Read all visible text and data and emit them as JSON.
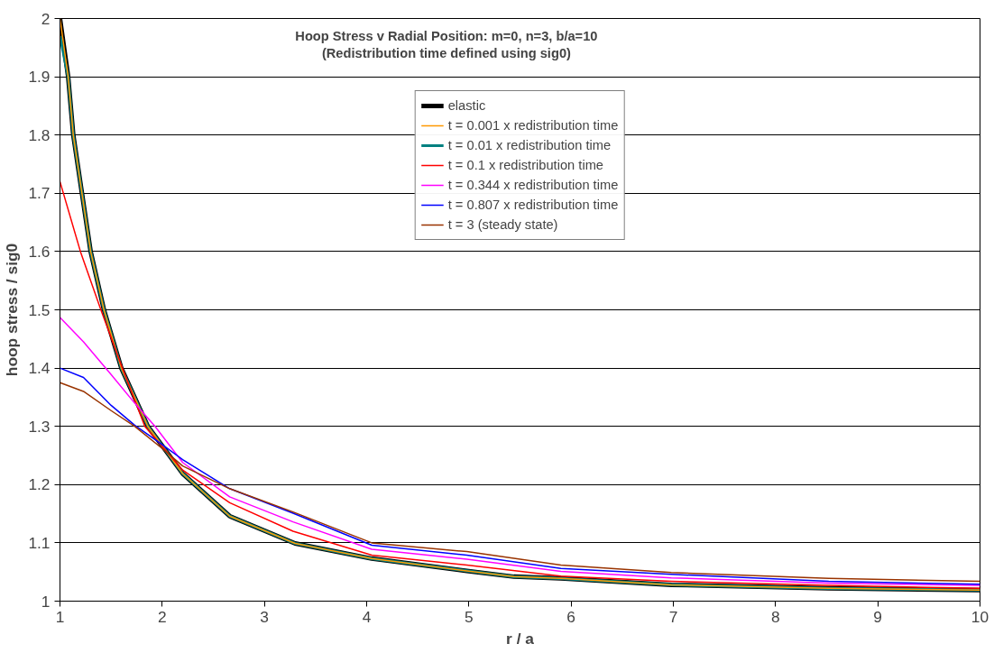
{
  "chart_data": {
    "type": "line",
    "title": "Hoop Stress v Radial Position: m=0, n=3, b/a=10",
    "subtitle": "(Redistribution time defined using sig0)",
    "xlabel": "r / a",
    "ylabel": "hoop stress / sig0",
    "xlim": [
      1,
      10
    ],
    "xticks": [
      1,
      2,
      3,
      4,
      5,
      6,
      7,
      8,
      9,
      10
    ],
    "ylim": [
      1,
      2
    ],
    "yticks": [
      1,
      1.1,
      1.2,
      1.3,
      1.4,
      1.5,
      1.6,
      1.7,
      1.8,
      1.9,
      2
    ],
    "grid": "y",
    "legend": "top",
    "marker": "none",
    "line_style": "solid",
    "series": [
      {
        "name": "elastic",
        "color": "#000000",
        "x": [
          1,
          1.08,
          1.13,
          1.215,
          1.3,
          1.43,
          1.6,
          1.86,
          2.2,
          2.66,
          3.3,
          4.05,
          4.98,
          5.44,
          5.9,
          6.98,
          8.52,
          10
        ],
        "values": [
          2,
          1.9,
          1.8,
          1.7,
          1.6,
          1.5,
          1.4,
          1.3,
          1.219,
          1.146,
          1.099,
          1.073,
          1.052,
          1.042,
          1.039,
          1.028,
          1.022,
          1.019
        ]
      },
      {
        "name": "t = 0.001 x redistribution time",
        "color": "#ff9900",
        "x": [
          1,
          1.08,
          1.13,
          1.215,
          1.3,
          1.43,
          1.6,
          1.86,
          2.2,
          2.66,
          3.3,
          4.05,
          4.98,
          5.44,
          5.9,
          6.98,
          8.52,
          10
        ],
        "values": [
          2,
          1.9,
          1.8,
          1.7,
          1.6,
          1.5,
          1.4,
          1.3,
          1.219,
          1.146,
          1.099,
          1.073,
          1.052,
          1.042,
          1.039,
          1.028,
          1.022,
          1.019
        ]
      },
      {
        "name": "t = 0.01 x redistribution time",
        "color": "#008080",
        "x": [
          1,
          1.08,
          1.13,
          1.215,
          1.3,
          1.43,
          1.6,
          1.86,
          2.2,
          2.66,
          3.3,
          4.05,
          4.98,
          5.44,
          5.9,
          6.98,
          8.52,
          10
        ],
        "values": [
          1.97,
          1.9,
          1.8,
          1.7,
          1.6,
          1.5,
          1.4,
          1.3,
          1.219,
          1.146,
          1.099,
          1.073,
          1.052,
          1.042,
          1.039,
          1.028,
          1.022,
          1.019
        ]
      },
      {
        "name": "t = 0.1 x redistribution time",
        "color": "#ff0000",
        "x": [
          1,
          1.2,
          1.4,
          1.61,
          1.83,
          2.2,
          2.66,
          3.28,
          4.05,
          4.98,
          5.9,
          6.98,
          8.52,
          10
        ],
        "values": [
          1.72,
          1.6,
          1.5,
          1.4,
          1.3,
          1.225,
          1.169,
          1.12,
          1.079,
          1.062,
          1.043,
          1.034,
          1.027,
          1.022
        ]
      },
      {
        "name": "t = 0.344 x redistribution time",
        "color": "#ff00ff",
        "x": [
          1,
          1.23,
          1.5,
          1.73,
          1.93,
          2.2,
          2.66,
          3.28,
          4.05,
          4.98,
          5.9,
          6.98,
          8.52,
          10
        ],
        "values": [
          1.487,
          1.445,
          1.389,
          1.34,
          1.3,
          1.238,
          1.179,
          1.136,
          1.089,
          1.072,
          1.051,
          1.04,
          1.031,
          1.027
        ]
      },
      {
        "name": "t = 0.807 x redistribution time",
        "color": "#0000ff",
        "x": [
          1,
          1.23,
          1.5,
          1.73,
          1.99,
          2.2,
          2.66,
          3.28,
          4.05,
          4.98,
          5.9,
          6.98,
          8.52,
          10
        ],
        "values": [
          1.4,
          1.384,
          1.336,
          1.302,
          1.27,
          1.243,
          1.193,
          1.151,
          1.096,
          1.079,
          1.056,
          1.046,
          1.034,
          1.029
        ]
      },
      {
        "name": "t = 3 (steady state)",
        "color": "#993300",
        "x": [
          1,
          1.23,
          1.5,
          1.73,
          2,
          2.2,
          2.66,
          3.28,
          4.05,
          4.98,
          5.9,
          6.98,
          8.52,
          10
        ],
        "values": [
          1.375,
          1.36,
          1.327,
          1.3,
          1.262,
          1.232,
          1.193,
          1.153,
          1.1,
          1.085,
          1.062,
          1.049,
          1.039,
          1.034
        ]
      }
    ]
  }
}
